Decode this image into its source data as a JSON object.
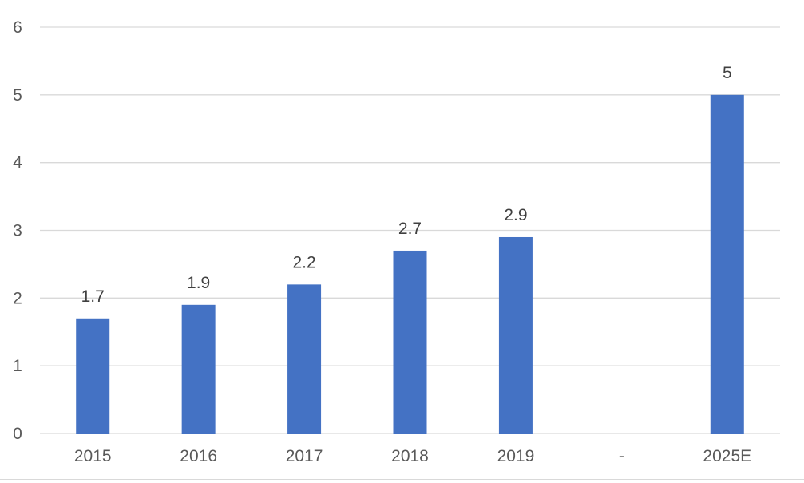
{
  "chart_data": {
    "type": "bar",
    "categories": [
      "2015",
      "2016",
      "2017",
      "2018",
      "2019",
      "-",
      "2025E"
    ],
    "values": [
      1.7,
      1.9,
      2.2,
      2.7,
      2.9,
      null,
      5
    ],
    "data_labels": [
      "1.7",
      "1.9",
      "2.2",
      "2.7",
      "2.9",
      "",
      "5"
    ],
    "y_ticks": [
      "0",
      "1",
      "2",
      "3",
      "4",
      "5",
      "6"
    ],
    "ylim": [
      0,
      6
    ],
    "title": "",
    "xlabel": "",
    "ylabel": "",
    "grid": true,
    "legend": "none",
    "bar_color": "#4472c4",
    "grid_color": "#d9d9d9",
    "text_color": "#595959"
  }
}
